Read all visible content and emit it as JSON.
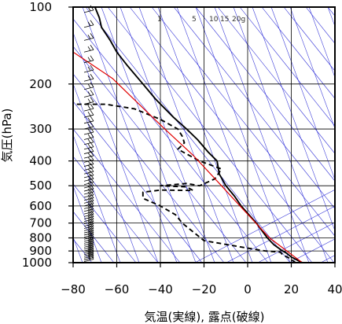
{
  "chart_data": {
    "type": "line",
    "title": "",
    "xlabel": "気温(実線), 露点(破線)",
    "ylabel": "気圧(hPa)",
    "x_unit": "°C",
    "y_scale": "log",
    "y_inverted": true,
    "xlim": [
      -80,
      40
    ],
    "ylim": [
      1000,
      100
    ],
    "x_ticks": [
      -80,
      -60,
      -40,
      -20,
      0,
      20,
      40
    ],
    "y_ticks": [
      100,
      200,
      300,
      400,
      500,
      600,
      700,
      800,
      900,
      1000
    ],
    "grid": true,
    "mixing_ratio_labels": [
      "1",
      "5",
      "10",
      "15",
      "20g"
    ],
    "colors": {
      "temperature": "#000000",
      "dewpoint": "#000000",
      "parcel": "#e00000",
      "guide_lines": "#2d2dd6",
      "grid": "#000000"
    },
    "series": [
      {
        "key": "temperature",
        "style": "solid",
        "points": [
          [
            25,
            1000
          ],
          [
            20,
            950
          ],
          [
            18,
            920
          ],
          [
            16,
            900
          ],
          [
            12,
            850
          ],
          [
            9,
            800
          ],
          [
            4,
            700
          ],
          [
            -3,
            600
          ],
          [
            -6,
            550
          ],
          [
            -10,
            500
          ],
          [
            -13,
            450
          ],
          [
            -14,
            400
          ],
          [
            -18,
            370
          ],
          [
            -23,
            330
          ],
          [
            -28,
            300
          ],
          [
            -34,
            270
          ],
          [
            -42,
            230
          ],
          [
            -48,
            200
          ],
          [
            -55,
            170
          ],
          [
            -60,
            150
          ],
          [
            -63,
            135
          ],
          [
            -67,
            120
          ],
          [
            -68,
            110
          ],
          [
            -70,
            100
          ]
        ]
      },
      {
        "key": "dewpoint",
        "style": "dashed",
        "points": [
          [
            22,
            1000
          ],
          [
            19,
            960
          ],
          [
            16,
            930
          ],
          [
            15,
            910
          ],
          [
            8,
            900
          ],
          [
            1,
            880
          ],
          [
            -20,
            820
          ],
          [
            -30,
            700
          ],
          [
            -33,
            650
          ],
          [
            -40,
            600
          ],
          [
            -48,
            560
          ],
          [
            -48,
            530
          ],
          [
            -40,
            520
          ],
          [
            -25,
            522
          ],
          [
            -28,
            505
          ],
          [
            -40,
            500
          ],
          [
            -28,
            490
          ],
          [
            -22,
            500
          ],
          [
            -15,
            470
          ],
          [
            -12,
            430
          ],
          [
            -22,
            400
          ],
          [
            -32,
            360
          ],
          [
            -29,
            340
          ],
          [
            -30,
            320
          ],
          [
            -32,
            300
          ],
          [
            -40,
            275
          ],
          [
            -52,
            250
          ],
          [
            -65,
            240
          ],
          [
            -80,
            240
          ]
        ]
      },
      {
        "key": "parcel",
        "style": "solid",
        "points": [
          [
            25,
            1000
          ],
          [
            10,
            800
          ],
          [
            -2,
            620
          ],
          [
            -12,
            500
          ],
          [
            -25,
            380
          ],
          [
            -38,
            300
          ],
          [
            -52,
            230
          ],
          [
            -62,
            190
          ],
          [
            -80,
            150
          ]
        ]
      }
    ]
  }
}
